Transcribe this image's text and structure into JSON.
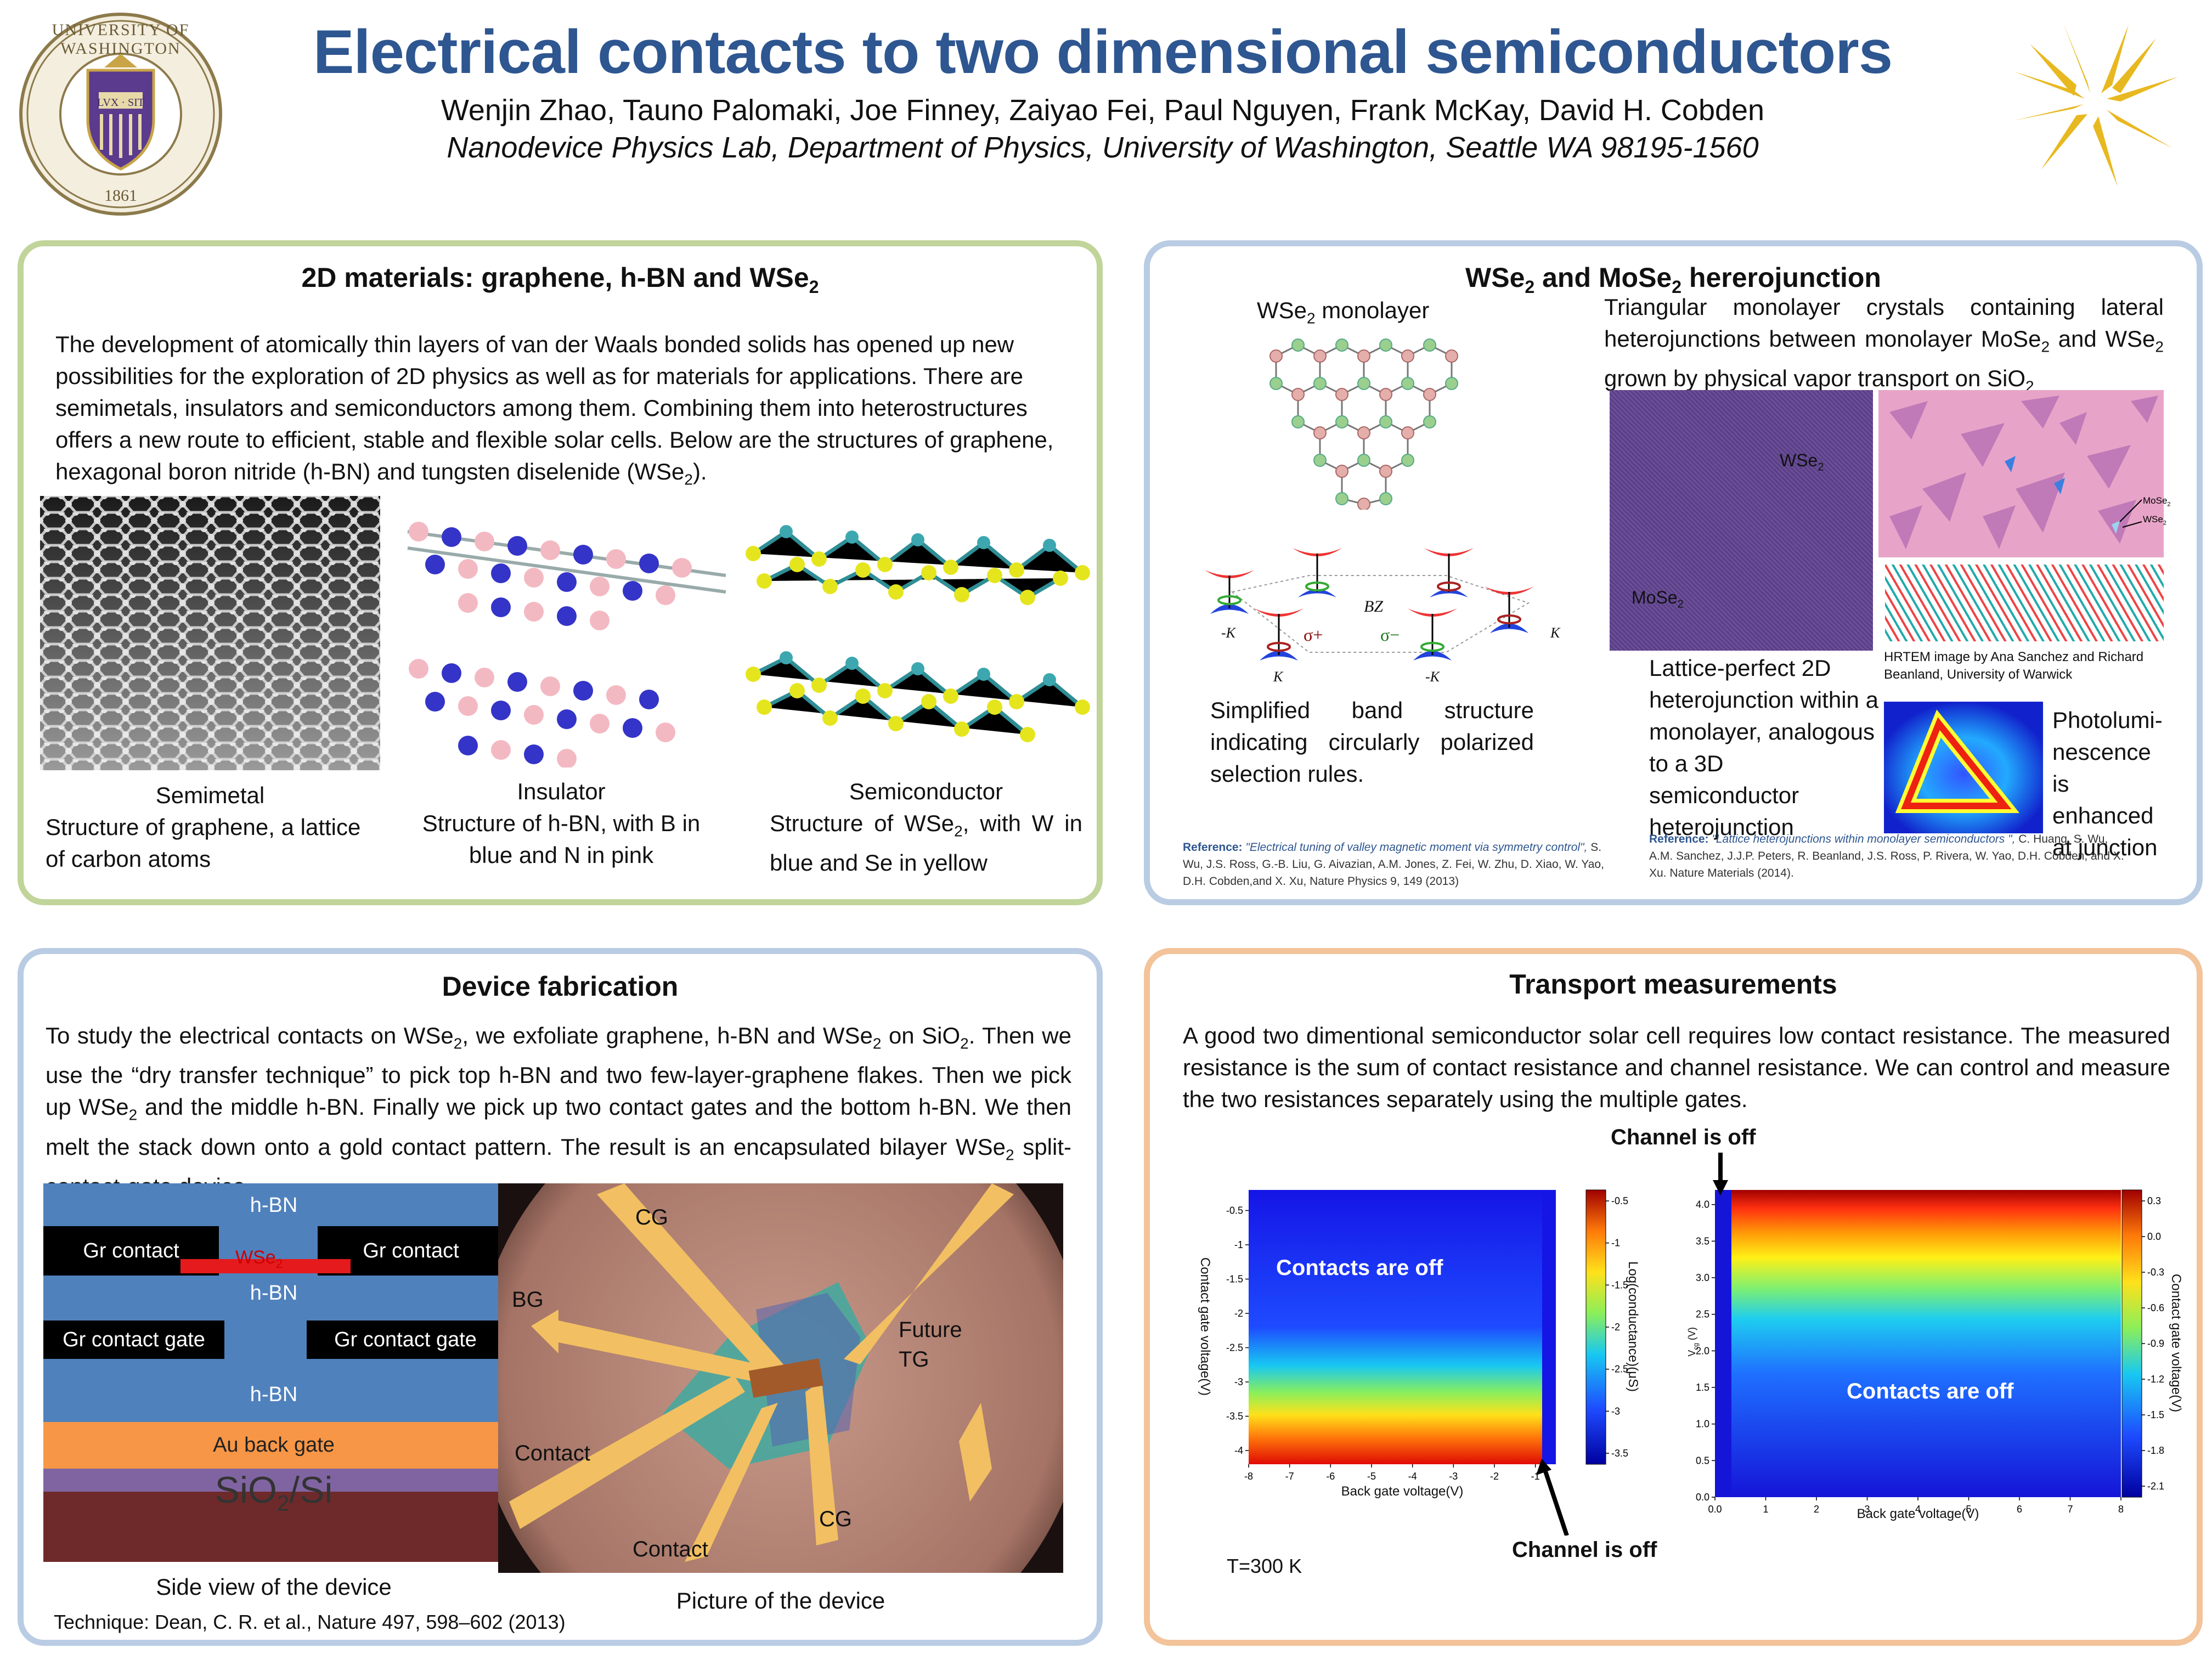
{
  "header": {
    "title": "Electrical contacts to two dimensional semiconductors",
    "authors": "Wenjin Zhao, Tauno Palomaki, Joe Finney, Zaiyao Fei, Paul Nguyen, Frank McKay, David H. Cobden",
    "affiliation": "Nanodevice Physics Lab, Department of Physics, University of  Washington, Seattle WA 98195-1560",
    "logo_left_text": "UNIVERSITY OF WASHINGTON",
    "logo_left_year": "1861",
    "logo_left_motto": "LVX · SIT"
  },
  "panel1": {
    "title_main": "2D materials: graphene, h-BN and WSe",
    "title_sub": "2",
    "body": "The development of atomically thin layers of van der Waals bonded solids has opened up new possibilities for the exploration of 2D physics as well as for materials for applications. There are semimetals, insulators and semiconductors among them. Combining them into heterostructures offers a new route to efficient, stable and flexible solar cells. Below are the structures of graphene, hexagonal boron nitride (h-BN) and tungsten diselenide (WSe",
    "body_sub": "2",
    "body_end": ").",
    "cap1_head": "Semimetal",
    "cap1_body": "Structure of graphene, a lattice of carbon atoms",
    "cap2_head": "Insulator",
    "cap2_body": "Structure of h-BN, with B in blue and N in pink",
    "cap3_head": "Semiconductor",
    "cap3_body_a": "Structure of WSe",
    "cap3_body_sub": "2",
    "cap3_body_b": ", with W in blue and Se in yellow"
  },
  "panel2": {
    "title_a": "WSe",
    "title_sub1": "2",
    "title_b": " and MoSe",
    "title_sub2": "2",
    "title_c": " hererojunction",
    "mono_a": "WSe",
    "mono_sub": "2",
    "mono_b": " monolayer",
    "tri_a": "Triangular monolayer crystals containing lateral heterojunctions between monolayer MoSe",
    "tri_sub1": "2",
    "tri_b": " and WSe",
    "tri_sub2": "2",
    "tri_c": " grown by physical vapor transport on SiO",
    "tri_sub3": "2",
    "bz": "BZ",
    "k_left": "-K",
    "k_mid": "K",
    "sigma_plus": "σ+",
    "sigma_minus": "σ−",
    "k_right": "K",
    "k_mid2": "-K",
    "band_text": "Simplified band structure indicating circularly polarized selection rules.",
    "img_wse2": "WSe",
    "img_mose2": "MoSe",
    "img_sub": "2",
    "lbl_mose2": "MoSe",
    "lbl_wse2": "WSe",
    "hrtem": "HRTEM image by Ana Sanchez and Richard Beanland, University of Warwick",
    "lattice_text": "Lattice-perfect 2D heterojunction within a monolayer, analogous to a 3D semiconductor heterojunction",
    "pl_text": "Photolumi- nescence is enhanced at junction",
    "ref1_label": "Reference:",
    "ref1_title": "\"Electrical tuning of valley magnetic moment via symmetry control\",",
    "ref1_body": " S. Wu, J.S. Ross, G.-B. Liu, G. Aivazian, A.M. Jones, Z. Fei, W. Zhu, D. Xiao, W. Yao, D.H. Cobden,and X. Xu, Nature Physics 9, 149 (2013)",
    "ref2_label": "Reference:",
    "ref2_title": " \"Lattice heterojunctions within monolayer semiconductors \",",
    "ref2_body": " C. Huang, S. Wu, A.M. Sanchez, J.J.P. Peters, R. Beanland, J.S. Ross, P. Rivera, W. Yao, D.H. Cobden, and X. Xu. Nature Materials (2014)."
  },
  "panel3": {
    "title": "Device fabrication",
    "p1": "To study the electrical contacts on WSe",
    "p1_sub": "2",
    "p2": ", we exfoliate graphene, h-BN and WSe",
    "p2_sub": "2",
    "p3": " on SiO",
    "p3_sub": "2",
    "p4": ". Then we use the “dry transfer technique” to pick top h-BN and two few-layer-graphene flakes. Then we pick up WSe",
    "p4_sub": "2",
    "p5": " and the middle h-BN. Finally we pick up two contact gates and the bottom h-BN. We then melt the stack down onto a gold contact pattern. The result is an encapsulated bilayer WSe",
    "p5_sub": "2",
    "p6": " split-contact-gate device.",
    "d_hbn_top": "h-BN",
    "d_gr_left": "Gr contact",
    "d_gr_right": "Gr contact",
    "d_wse2": "WSe",
    "d_wse2_sub": "2",
    "d_hbn_mid": "h-BN",
    "d_grg_left": "Gr contact gate",
    "d_grg_right": "Gr contact gate",
    "d_hbn_bot": "h-BN",
    "d_au": "Au back gate",
    "d_sio": "SiO",
    "d_sio_sub": "2",
    "d_sio_end": "/Si",
    "side_cap": "Side view of the device",
    "pic_cg1": "CG",
    "pic_bg": "BG",
    "pic_future": "Future TG",
    "pic_contact1": "Contact",
    "pic_contact2": "Contact",
    "pic_cg2": "CG",
    "pic_cap": "Picture of the device",
    "technique": "Technique: Dean, C. R. et al., Nature 497, 598–602 (2013)"
  },
  "panel4": {
    "title": "Transport measurements",
    "body": "A good two dimentional semiconductor solar cell requires low contact resistance. The measured resistance is the sum of contact resistance and channel resistance. We can control and measure the two resistances separately using the multiple gates.",
    "channel_off_top": "Channel is off",
    "channel_off_bottom": "Channel is off",
    "temp": "T=300 K"
  },
  "chart_data": [
    {
      "type": "heatmap",
      "title": "",
      "xlabel": "Back gate voltage(V)",
      "ylabel": "Contact gate voltage(V)",
      "colorbar_label": "Log(conductance)(μS)",
      "x_ticks": [
        "-8",
        "-7",
        "-6",
        "-5",
        "-4",
        "-3",
        "-2",
        "-1"
      ],
      "y_ticks": [
        "-0.5",
        "-1",
        "-1.5",
        "-2",
        "-2.5",
        "-3",
        "-3.5",
        "-4"
      ],
      "colorbar_ticks": [
        "-0.5",
        "-1",
        "-1.5",
        "-2",
        "-2.5",
        "-3",
        "-3.5"
      ],
      "xlim": [
        -8,
        -0.5
      ],
      "ylim": [
        -4.2,
        -0.2
      ],
      "annotation": "Contacts are off"
    },
    {
      "type": "heatmap",
      "title": "",
      "xlabel": "Back gate voltage(V)",
      "ylabel": "V",
      "ylabel_sub": "cg",
      "ylabel_unit": " (V)",
      "colorbar_label": "Contact gate voltage(V)",
      "x_ticks": [
        "0.0",
        "1",
        "2",
        "3",
        "4",
        "5",
        "6",
        "7",
        "8"
      ],
      "y_ticks": [
        "0.0",
        "0.5",
        "1.0",
        "1.5",
        "2.0",
        "2.5",
        "3.0",
        "3.5",
        "4.0"
      ],
      "colorbar_ticks": [
        "0.3",
        "0.0",
        "-0.3",
        "-0.6",
        "-0.9",
        "-1.2",
        "-1.5",
        "-1.8",
        "-2.1"
      ],
      "xlim": [
        0,
        8
      ],
      "ylim": [
        0,
        4.2
      ],
      "annotation": "Contacts are off"
    }
  ]
}
